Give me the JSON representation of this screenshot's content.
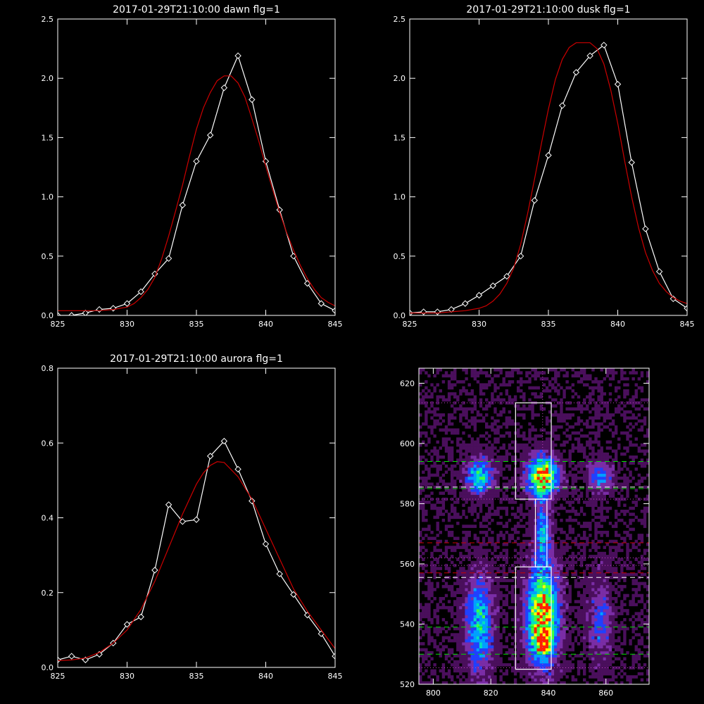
{
  "chart_data": [
    {
      "type": "line",
      "title": "2017-01-29T21:10:00 dawn flg=1",
      "xlim": [
        825,
        845
      ],
      "ylim": [
        0,
        2.5
      ],
      "xticks": [
        "825",
        "830",
        "835",
        "840",
        "845"
      ],
      "yticks": [
        "0.0",
        "0.5",
        "1.0",
        "1.5",
        "2.0",
        "2.5"
      ],
      "series": [
        {
          "color": "#ffffff",
          "markers": "diamond",
          "x": [
            825,
            826,
            827,
            828,
            829,
            830,
            831,
            832,
            833,
            834,
            835,
            836,
            837,
            838,
            839,
            840,
            841,
            842,
            843,
            844,
            845
          ],
          "y": [
            0.0,
            0.0,
            0.02,
            0.05,
            0.06,
            0.1,
            0.2,
            0.35,
            0.48,
            0.93,
            1.3,
            1.52,
            1.92,
            2.19,
            1.82,
            1.3,
            0.89,
            0.5,
            0.27,
            0.1,
            0.04
          ]
        },
        {
          "color": "#cc0000",
          "markers": "none",
          "x": [
            825,
            826,
            827,
            828,
            829,
            830,
            830.5,
            831,
            831.5,
            832,
            832.5,
            833,
            833.5,
            834,
            834.5,
            835,
            835.5,
            836,
            836.5,
            837,
            837.5,
            838,
            838.5,
            839,
            839.5,
            840,
            840.5,
            841,
            841.5,
            842,
            842.5,
            843,
            843.5,
            844,
            844.5,
            845
          ],
          "y": [
            0.04,
            0.04,
            0.04,
            0.04,
            0.05,
            0.07,
            0.1,
            0.15,
            0.22,
            0.32,
            0.48,
            0.67,
            0.88,
            1.1,
            1.34,
            1.57,
            1.75,
            1.88,
            1.98,
            2.02,
            2.02,
            1.96,
            1.84,
            1.66,
            1.47,
            1.26,
            1.06,
            0.87,
            0.7,
            0.55,
            0.42,
            0.31,
            0.22,
            0.15,
            0.11,
            0.08
          ]
        }
      ]
    },
    {
      "type": "line",
      "title": "2017-01-29T21:10:00 dusk flg=1",
      "xlim": [
        825,
        845
      ],
      "ylim": [
        0,
        2.5
      ],
      "xticks": [
        "825",
        "830",
        "835",
        "840",
        "845"
      ],
      "yticks": [
        "0.0",
        "0.5",
        "1.0",
        "1.5",
        "2.0",
        "2.5"
      ],
      "series": [
        {
          "color": "#ffffff",
          "markers": "diamond",
          "x": [
            825,
            826,
            827,
            828,
            829,
            830,
            831,
            832,
            833,
            834,
            835,
            836,
            837,
            838,
            839,
            840,
            841,
            842,
            843,
            844,
            845
          ],
          "y": [
            0.02,
            0.03,
            0.03,
            0.05,
            0.1,
            0.17,
            0.25,
            0.33,
            0.5,
            0.97,
            1.35,
            1.77,
            2.05,
            2.19,
            2.28,
            1.95,
            1.29,
            0.73,
            0.37,
            0.14,
            0.06
          ]
        },
        {
          "color": "#cc0000",
          "markers": "none",
          "x": [
            825,
            826,
            827,
            828,
            829,
            830,
            830.5,
            831,
            831.5,
            832,
            832.5,
            833,
            833.5,
            834,
            834.5,
            835,
            835.5,
            836,
            836.5,
            837,
            837.5,
            838,
            838.5,
            839,
            839.5,
            840,
            840.5,
            841,
            841.5,
            842,
            842.5,
            843,
            843.5,
            844,
            844.5,
            845
          ],
          "y": [
            0.02,
            0.02,
            0.02,
            0.03,
            0.04,
            0.06,
            0.08,
            0.12,
            0.18,
            0.27,
            0.4,
            0.6,
            0.86,
            1.15,
            1.45,
            1.74,
            1.99,
            2.16,
            2.26,
            2.3,
            2.3,
            2.3,
            2.25,
            2.12,
            1.9,
            1.62,
            1.3,
            1.0,
            0.74,
            0.53,
            0.38,
            0.27,
            0.2,
            0.15,
            0.12,
            0.1
          ]
        }
      ]
    },
    {
      "type": "line",
      "title": "2017-01-29T21:10:00 aurora flg=1",
      "xlim": [
        825,
        845
      ],
      "ylim": [
        0,
        0.8
      ],
      "xticks": [
        "825",
        "830",
        "835",
        "840",
        "845"
      ],
      "yticks": [
        "0.0",
        "0.2",
        "0.4",
        "0.6",
        "0.8"
      ],
      "series": [
        {
          "color": "#ffffff",
          "markers": "diamond",
          "x": [
            825,
            826,
            827,
            828,
            829,
            830,
            831,
            832,
            833,
            834,
            835,
            836,
            837,
            838,
            839,
            840,
            841,
            842,
            843,
            844,
            845
          ],
          "y": [
            0.02,
            0.03,
            0.02,
            0.035,
            0.065,
            0.115,
            0.135,
            0.26,
            0.435,
            0.39,
            0.395,
            0.565,
            0.605,
            0.53,
            0.445,
            0.33,
            0.25,
            0.195,
            0.14,
            0.09,
            0.03
          ]
        },
        {
          "color": "#cc0000",
          "markers": "none",
          "x": [
            825,
            826,
            827,
            828,
            829,
            830,
            831,
            832,
            833,
            834,
            835,
            835.5,
            836,
            836.5,
            837,
            838,
            839,
            840,
            841,
            842,
            843,
            844,
            845
          ],
          "y": [
            0.018,
            0.02,
            0.025,
            0.04,
            0.065,
            0.1,
            0.155,
            0.23,
            0.32,
            0.41,
            0.49,
            0.52,
            0.54,
            0.55,
            0.548,
            0.51,
            0.45,
            0.37,
            0.29,
            0.21,
            0.15,
            0.1,
            0.05
          ]
        }
      ]
    },
    {
      "type": "heatmap",
      "xlim": [
        795,
        875
      ],
      "ylim": [
        520,
        625
      ],
      "xticks": [
        "800",
        "820",
        "840",
        "860"
      ],
      "yticks": [
        "520",
        "540",
        "560",
        "580",
        "600",
        "620"
      ],
      "colormap": [
        "#000000",
        "#4a0f5c",
        "#7a2da6",
        "#2040ff",
        "#00a0ff",
        "#00e0c0",
        "#40ff40",
        "#ffff00",
        "#ff2000"
      ],
      "blobs": [
        {
          "x": 816,
          "y": 589,
          "sx": 3.2,
          "sy": 4,
          "peak": 0.62
        },
        {
          "x": 838,
          "y": 589,
          "sx": 3.5,
          "sy": 4.5,
          "peak": 1.0
        },
        {
          "x": 858,
          "y": 589,
          "sx": 3,
          "sy": 3.5,
          "peak": 0.4
        },
        {
          "x": 816,
          "y": 540,
          "sx": 3.3,
          "sy": 11,
          "peak": 0.55
        },
        {
          "x": 838,
          "y": 543,
          "sx": 3.8,
          "sy": 11,
          "peak": 0.92
        },
        {
          "x": 838,
          "y": 534,
          "sx": 2.5,
          "sy": 3,
          "peak": 0.4
        },
        {
          "x": 858,
          "y": 541,
          "sx": 3,
          "sy": 10,
          "peak": 0.3
        },
        {
          "x": 838,
          "y": 570,
          "sx": 1.8,
          "sy": 7,
          "peak": 0.45
        }
      ],
      "white_box_upper": {
        "x0": 828.6,
        "x1": 841,
        "y0": 581.5,
        "y1": 613.5
      },
      "white_box_lower": {
        "x0": 828.6,
        "x1": 841,
        "y0": 525,
        "y1": 559
      },
      "white_box_neck": {
        "x0": 835.5,
        "x1": 839.5,
        "y0": 559,
        "y1": 581.5
      },
      "v_dotted_x": 838,
      "lines": [
        {
          "y": 594,
          "color": "#00dd00",
          "style": "dash"
        },
        {
          "y": 585,
          "color": "#00dd00",
          "style": "dash"
        },
        {
          "y": 585.5,
          "color": "#ffffff",
          "style": "dash"
        },
        {
          "y": 539,
          "color": "#00dd00",
          "style": "dash"
        },
        {
          "y": 530,
          "color": "#00dd00",
          "style": "dash"
        },
        {
          "y": 567,
          "color": "#cc0000",
          "style": "dash"
        },
        {
          "y": 557,
          "color": "#cc0000",
          "style": "dash"
        },
        {
          "y": 555.5,
          "color": "#ffffff",
          "style": "dash"
        },
        {
          "y": 613.5,
          "color": "#c040c0",
          "style": "dot"
        },
        {
          "y": 581.5,
          "color": "#c040c0",
          "style": "dot"
        },
        {
          "y": 562,
          "color": "#c040c0",
          "style": "dot"
        },
        {
          "y": 559.5,
          "color": "#c040c0",
          "style": "dot"
        },
        {
          "y": 525.5,
          "color": "#c040c0",
          "style": "dot"
        }
      ]
    }
  ]
}
